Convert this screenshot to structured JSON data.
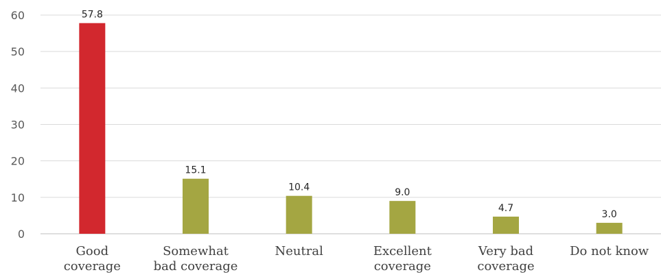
{
  "chart_data": {
    "type": "bar",
    "categories": [
      [
        "Good",
        "coverage"
      ],
      [
        "Somewhat",
        "bad coverage"
      ],
      [
        "Neutral"
      ],
      [
        "Excellent",
        "coverage"
      ],
      [
        "Very bad",
        "coverage"
      ],
      [
        "Do not know"
      ]
    ],
    "values": [
      57.8,
      15.1,
      10.4,
      9.0,
      4.7,
      3.0
    ],
    "data_labels": [
      "57.8",
      "15.1",
      "10.4",
      "9.0",
      "4.7",
      "3.0"
    ],
    "y_ticks": [
      "0",
      "10",
      "20",
      "30",
      "40",
      "50",
      "60"
    ],
    "ylim": [
      0,
      60
    ],
    "grid": true,
    "legend": "none",
    "colors": {
      "highlight": "#d2282e",
      "default": "#a4a642",
      "grid": "#d9d9d9"
    },
    "highlight_index": 0
  }
}
